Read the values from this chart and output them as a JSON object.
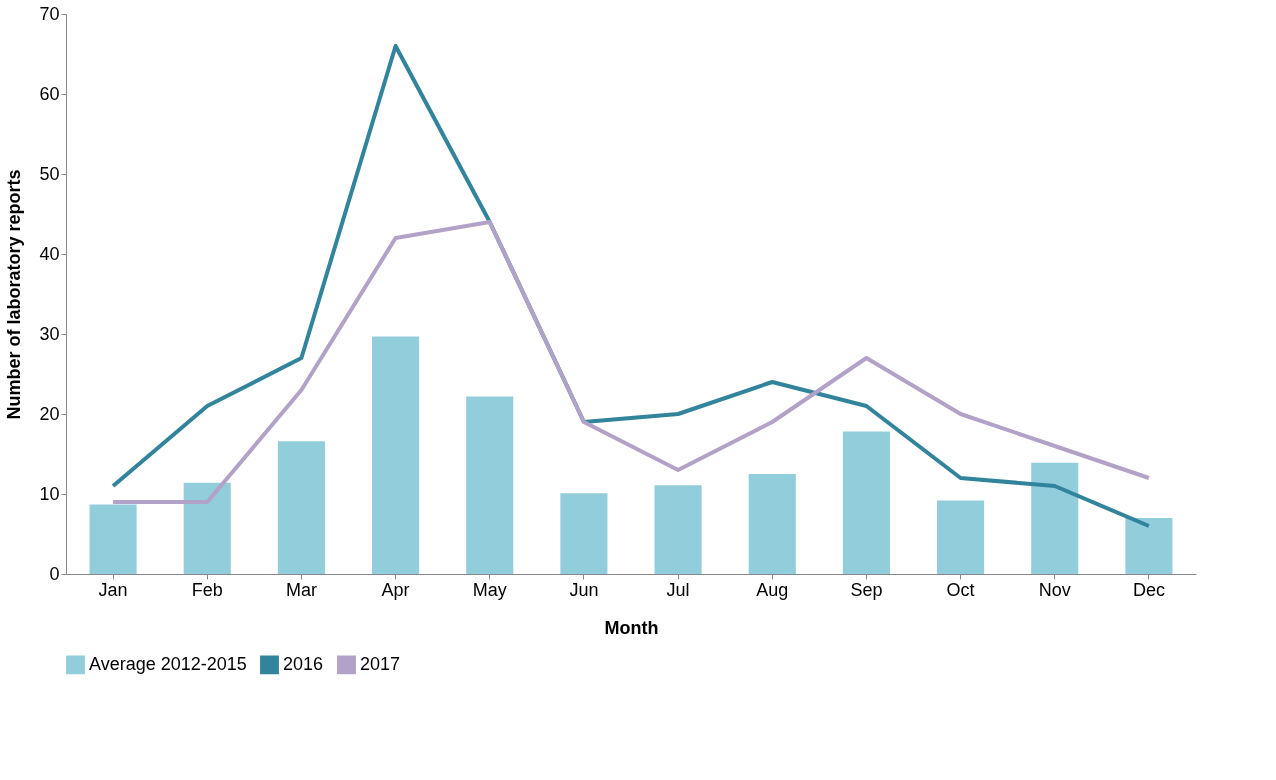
{
  "chart_data": {
    "type": "bar",
    "xlabel": "Month",
    "ylabel": "Number of laboratory reports",
    "categories": [
      "Jan",
      "Feb",
      "Mar",
      "Apr",
      "May",
      "Jun",
      "Jul",
      "Aug",
      "Sep",
      "Oct",
      "Nov",
      "Dec"
    ],
    "series": [
      {
        "name": "Average 2012-2015",
        "color": "#92cddc",
        "values": [
          8.7,
          11.4,
          16.6,
          29.7,
          22.2,
          10.1,
          11.1,
          12.5,
          17.8,
          9.2,
          13.9,
          7.0
        ]
      },
      {
        "name": "2016",
        "type": "line",
        "color": "#31849b",
        "values": [
          11,
          21,
          27,
          66,
          44,
          19,
          20,
          24,
          21,
          12,
          11,
          6
        ]
      },
      {
        "name": "2017",
        "type": "line",
        "color": "#b3a2c7",
        "values": [
          9,
          9,
          23,
          42,
          44,
          19,
          13,
          19,
          27,
          20,
          16,
          12
        ]
      }
    ],
    "ylim": [
      0,
      70
    ],
    "yticks": [
      0,
      10,
      20,
      30,
      40,
      50,
      60,
      70
    ],
    "legend": "bottom"
  }
}
